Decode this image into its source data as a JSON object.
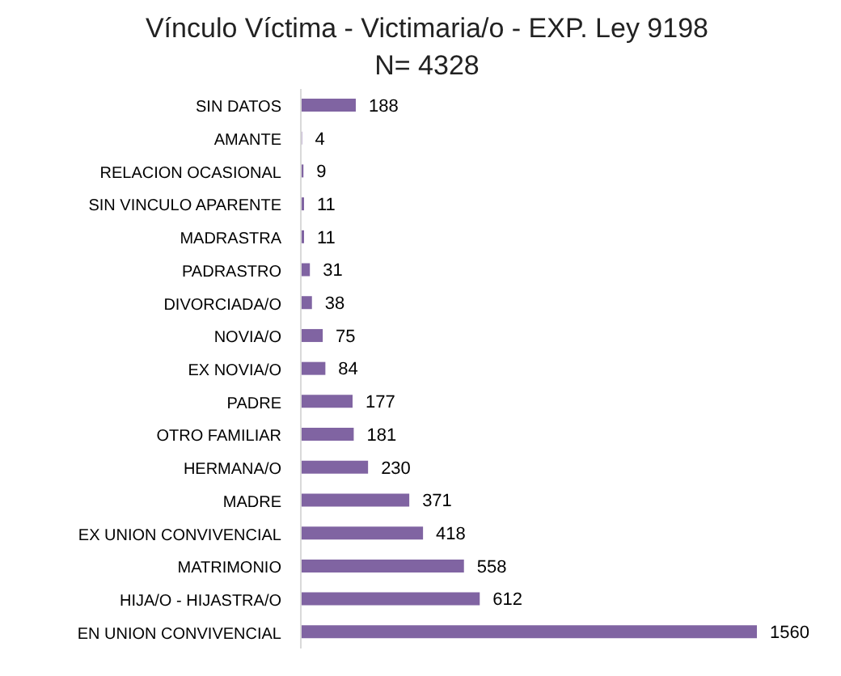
{
  "chart_data": {
    "type": "bar",
    "orientation": "horizontal",
    "title": "Vínculo Víctima - Victimaria/o - EXP. Ley 9198",
    "subtitle": "N= 4328",
    "categories": [
      "SIN DATOS",
      "AMANTE",
      "RELACION  OCASIONAL",
      "SIN VINCULO  APARENTE",
      "MADRASTRA",
      "PADRASTRO",
      "DIVORCIADA/O",
      "NOVIA/O",
      "EX NOVIA/O",
      "PADRE",
      "OTRO FAMILIAR",
      "HERMANA/O",
      "MADRE",
      "EX UNION CONVIVENCIAL",
      "MATRIMONIO",
      "HIJA/O - HIJASTRA/O",
      "EN UNION CONVIVENCIAL"
    ],
    "values": [
      188,
      4,
      9,
      11,
      11,
      31,
      38,
      75,
      84,
      177,
      181,
      230,
      371,
      418,
      558,
      612,
      1560
    ],
    "color": "#8064a2",
    "data_labels": true
  }
}
